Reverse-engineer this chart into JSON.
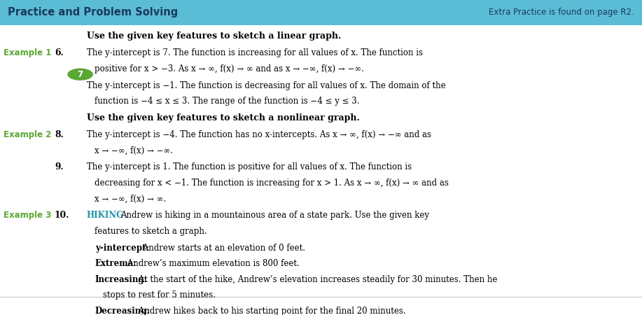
{
  "header_bg": "#5bbcd6",
  "header_text": "Practice and Problem Solving",
  "header_right": "Extra Practice is found on page R2.",
  "header_text_color": "#1a3a5c",
  "page_bg": "#ffffff",
  "example_color": "#5aa832",
  "hiking_color": "#2196a8",
  "section1_title": "Use the given key features to sketch a linear graph.",
  "section2_title": "Use the given key features to sketch a nonlinear graph.",
  "items": [
    {
      "number": "6.",
      "example": "Example 1",
      "text": "The y-intercept is 7. The function is increasing for all values of x. The function is\npositive for x > −3. As x → ∞, f(x) → ∞ and as x → −∞, f(x) → −∞."
    },
    {
      "number": "7",
      "circle": true,
      "text": "The y-intercept is −1. The function is decreasing for all values of x. The domain of the\nfunction is −4 ≤ x ≤ 3. The range of the function is −4 ≤ y ≤ 3."
    },
    {
      "number": "8.",
      "example": "Example 2",
      "text": "The y-intercept is −4. The function has no x-intercepts. As x → ∞, f(x) → −∞ and as\nx → −∞, f(x) → −∞."
    },
    {
      "number": "9.",
      "text": "The y-intercept is 1. The function is positive for all values of x. The function is\ndecreasing for x < −1. The function is increasing for x > 1. As x → ∞, f(x) → ∞ and as\nx → −∞, f(x) → ∞."
    },
    {
      "number": "10.",
      "example": "Example 3",
      "hiking_label": "HIKING",
      "text": "Andrew is hiking in a mountainous area of a state park. Use the given key\nfeatures to sketch a graph.",
      "subpoints": [
        {
          "bold": "y-intercept:",
          "rest": " Andrew starts at an elevation of 0 feet."
        },
        {
          "bold": "Extrema:",
          "rest": " Andrew’s maximum elevation is 800 feet."
        },
        {
          "bold": "Increasing:",
          "rest": " At the start of the hike, Andrew’s elevation increases steadily for 30 minutes. Then he\nstops to rest for 5 minutes."
        },
        {
          "bold": "Decreasing:",
          "rest": " Andrew hikes back to his starting point for the final 20 minutes."
        }
      ]
    }
  ]
}
